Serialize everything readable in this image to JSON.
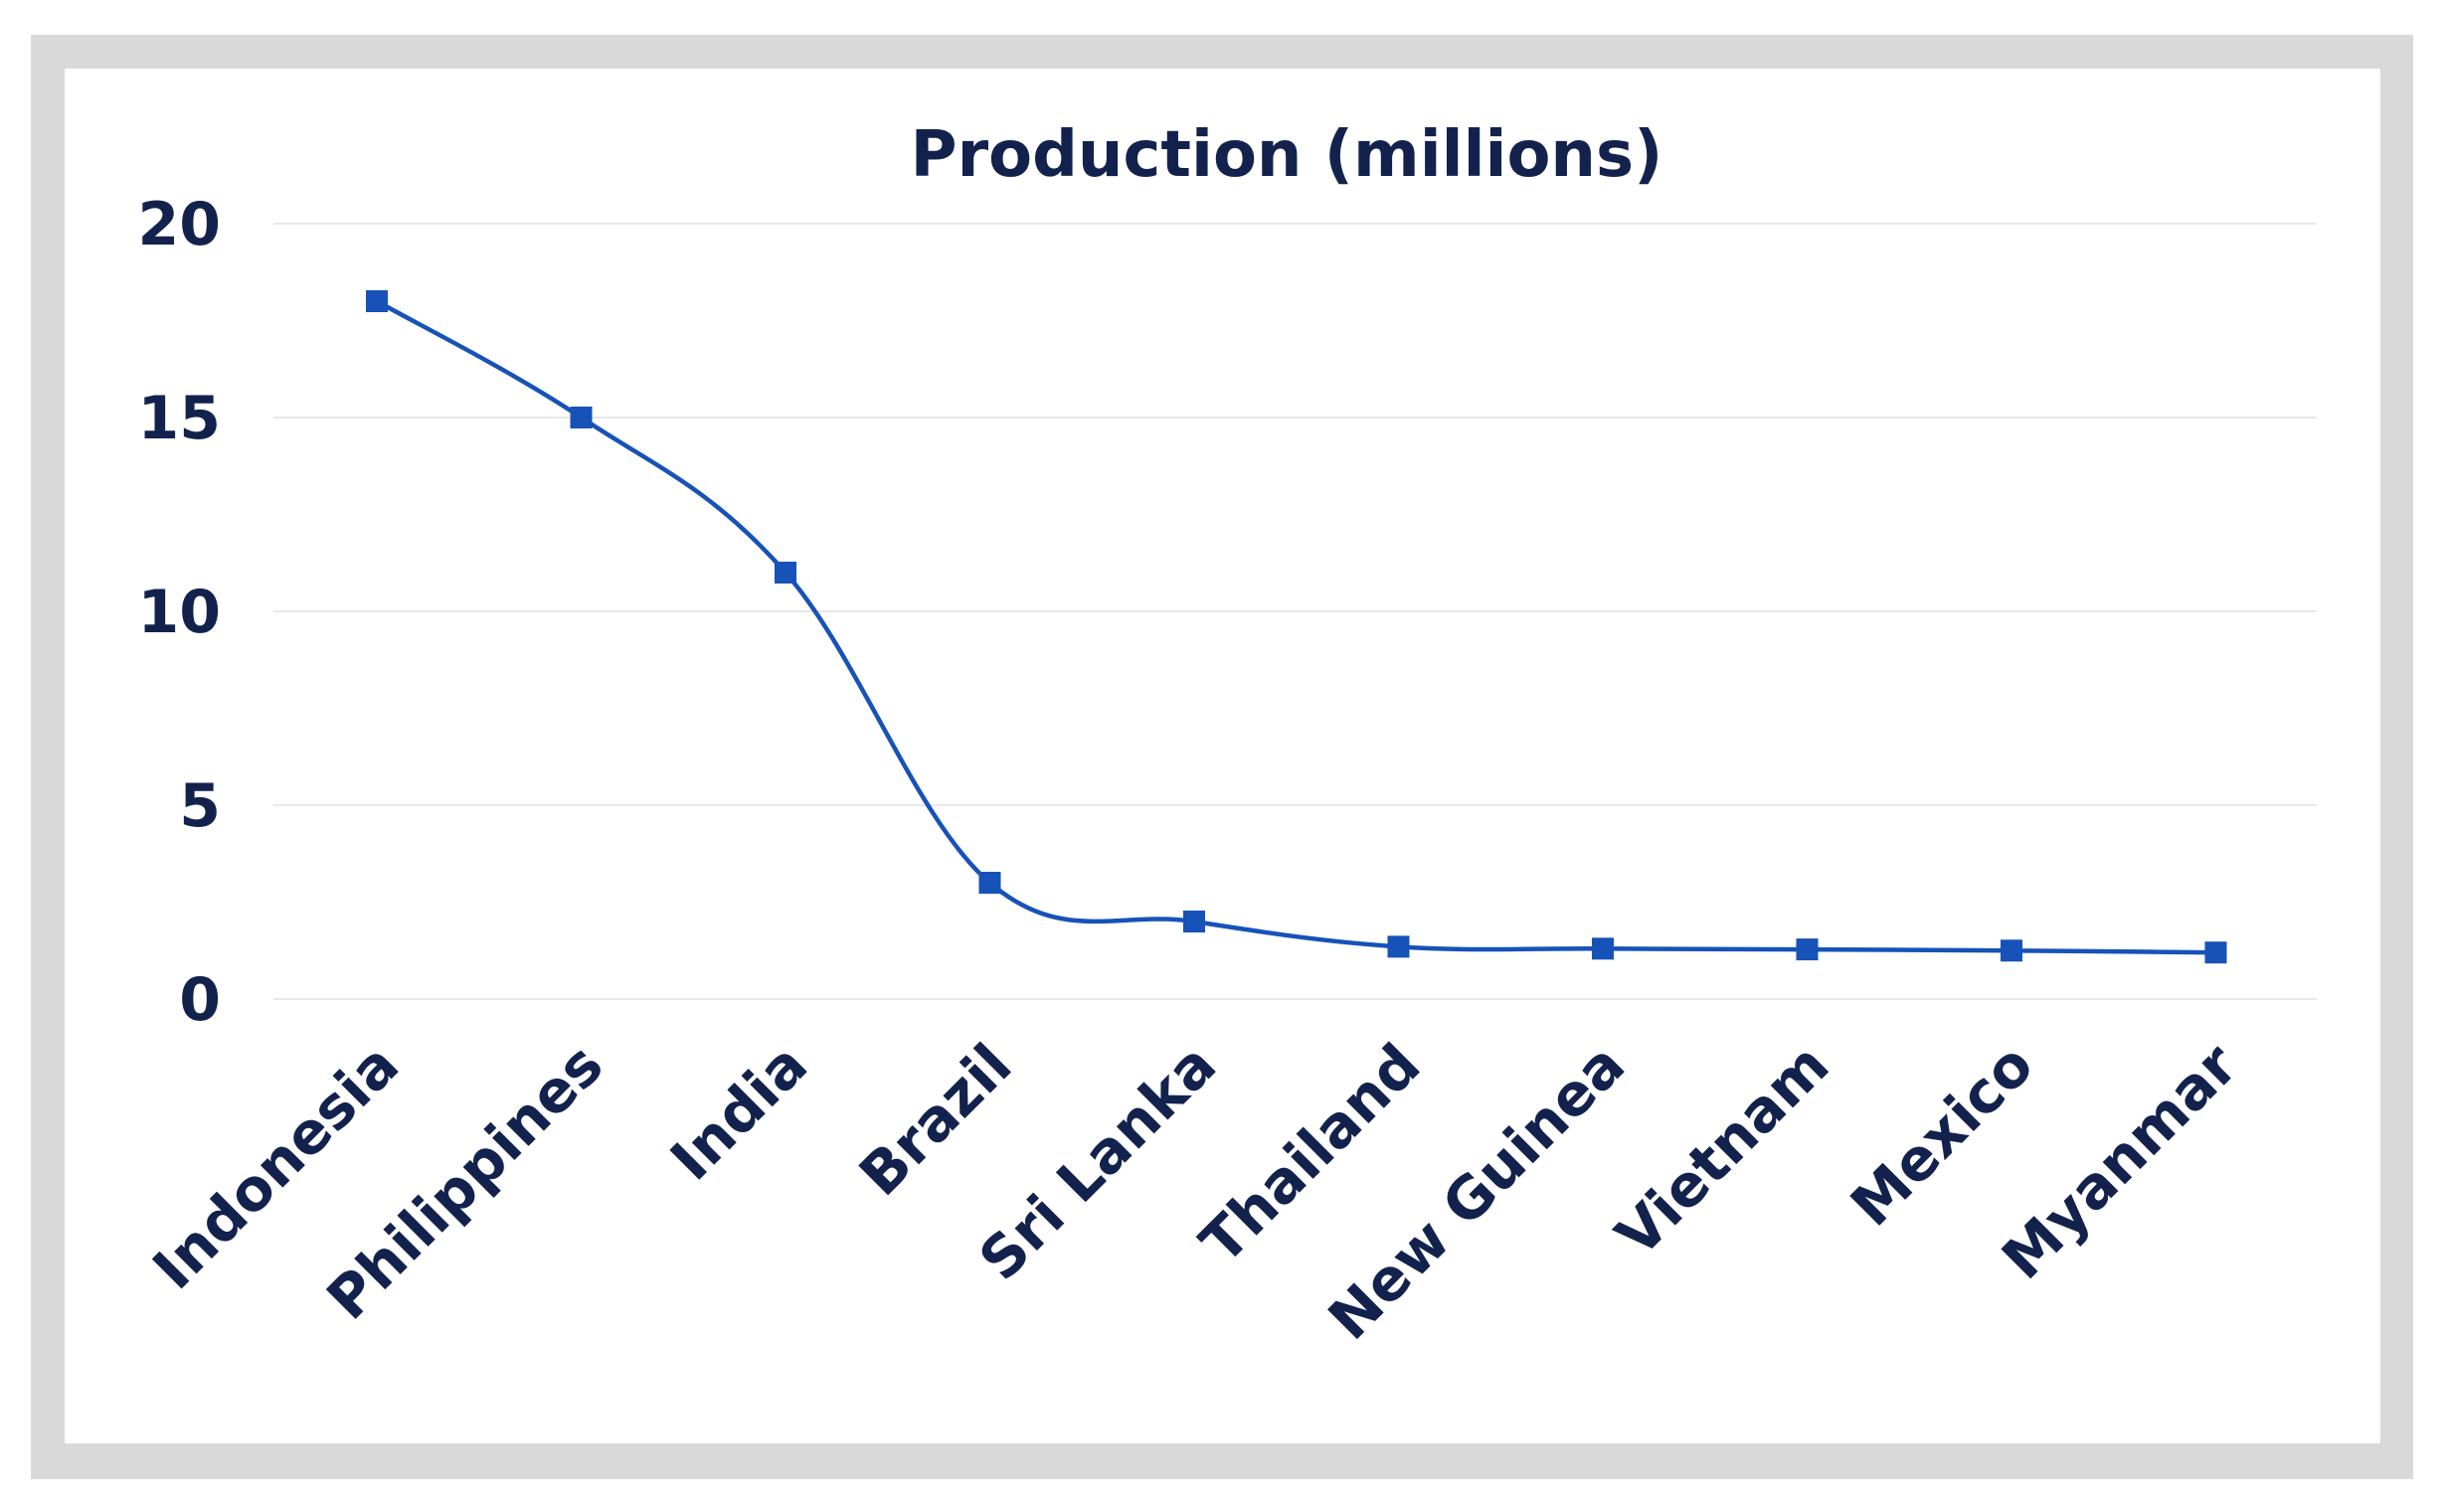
{
  "chart_data": {
    "type": "line",
    "title": "Production (millions)",
    "xlabel": "",
    "ylabel": "",
    "ylim": [
      0,
      20
    ],
    "yticks": [
      "0",
      "5",
      "10",
      "15",
      "20"
    ],
    "grid": true,
    "smooth": true,
    "marker": "square",
    "color": "#1652b8",
    "categories": [
      "Indonesia",
      "Philippines",
      "India",
      "Brazil",
      "Sri Lanka",
      "Thailand",
      "New Guinea",
      "Vietnam",
      "Mexico",
      "Myanmar"
    ],
    "values": [
      18,
      15,
      11,
      3,
      2,
      1.35,
      1.3,
      1.28,
      1.25,
      1.2
    ]
  }
}
